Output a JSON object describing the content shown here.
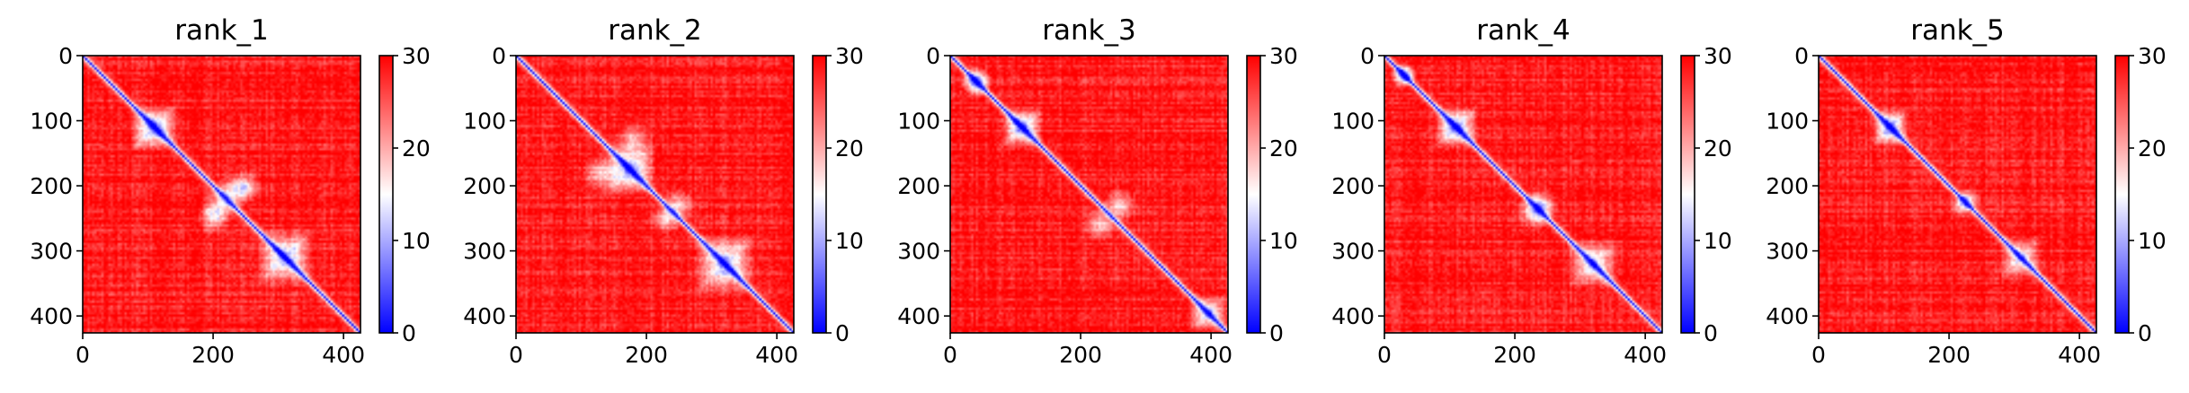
{
  "chart_data": [
    {
      "type": "heatmap",
      "title": "rank_1",
      "xlabel": "",
      "ylabel": "",
      "xlim": [
        0,
        426
      ],
      "ylim": [
        426,
        0
      ],
      "xticks": [
        0,
        200,
        400
      ],
      "yticks": [
        0,
        100,
        200,
        300,
        400
      ],
      "colorbar": {
        "range": [
          0,
          30
        ],
        "ticks": [
          0,
          10,
          20,
          30
        ],
        "colors": [
          "#0000ff",
          "#ffffff",
          "#ff0000"
        ]
      },
      "domains": [
        {
          "center": 110,
          "size": 36,
          "strength": 1.0
        },
        {
          "center": 310,
          "size": 44,
          "strength": 0.9
        }
      ],
      "off_diagonal_blobs": [
        {
          "x": 210,
          "y": 230,
          "size": 30
        },
        {
          "x": 250,
          "y": 200,
          "size": 26
        }
      ]
    },
    {
      "type": "heatmap",
      "title": "rank_2",
      "xlabel": "",
      "ylabel": "",
      "xlim": [
        0,
        426
      ],
      "ylim": [
        426,
        0
      ],
      "xticks": [
        0,
        200,
        400
      ],
      "yticks": [
        0,
        100,
        200,
        300,
        400
      ],
      "colorbar": {
        "range": [
          0,
          30
        ],
        "ticks": [
          0,
          10,
          20,
          30
        ],
        "colors": [
          "#0000ff",
          "#ffffff",
          "#ff0000"
        ]
      },
      "domains": [
        {
          "center": 175,
          "size": 40,
          "strength": 1.0
        },
        {
          "center": 320,
          "size": 46,
          "strength": 0.9
        }
      ],
      "off_diagonal_blobs": [
        {
          "x": 130,
          "y": 180,
          "size": 30
        },
        {
          "x": 230,
          "y": 250,
          "size": 26
        }
      ]
    },
    {
      "type": "heatmap",
      "title": "rank_3",
      "xlabel": "",
      "ylabel": "",
      "xlim": [
        0,
        426
      ],
      "ylim": [
        426,
        0
      ],
      "xticks": [
        0,
        200,
        400
      ],
      "yticks": [
        0,
        100,
        200,
        300,
        400
      ],
      "colorbar": {
        "range": [
          0,
          30
        ],
        "ticks": [
          0,
          10,
          20,
          30
        ],
        "colors": [
          "#0000ff",
          "#ffffff",
          "#ff0000"
        ]
      },
      "domains": [
        {
          "center": 110,
          "size": 32,
          "strength": 1.0
        },
        {
          "center": 395,
          "size": 30,
          "strength": 0.8
        }
      ],
      "off_diagonal_blobs": [
        {
          "x": 40,
          "y": 40,
          "size": 24
        },
        {
          "x": 260,
          "y": 230,
          "size": 28
        }
      ]
    },
    {
      "type": "heatmap",
      "title": "rank_4",
      "xlabel": "",
      "ylabel": "",
      "xlim": [
        0,
        426
      ],
      "ylim": [
        426,
        0
      ],
      "xticks": [
        0,
        200,
        400
      ],
      "yticks": [
        0,
        100,
        200,
        300,
        400
      ],
      "colorbar": {
        "range": [
          0,
          30
        ],
        "ticks": [
          0,
          10,
          20,
          30
        ],
        "colors": [
          "#0000ff",
          "#ffffff",
          "#ff0000"
        ]
      },
      "domains": [
        {
          "center": 110,
          "size": 34,
          "strength": 1.0
        },
        {
          "center": 320,
          "size": 40,
          "strength": 0.8
        }
      ],
      "off_diagonal_blobs": [
        {
          "x": 240,
          "y": 230,
          "size": 30
        },
        {
          "x": 30,
          "y": 30,
          "size": 20
        }
      ]
    },
    {
      "type": "heatmap",
      "title": "rank_5",
      "xlabel": "",
      "ylabel": "",
      "xlim": [
        0,
        426
      ],
      "ylim": [
        426,
        0
      ],
      "xticks": [
        0,
        200,
        400
      ],
      "yticks": [
        0,
        100,
        200,
        300,
        400
      ],
      "colorbar": {
        "range": [
          0,
          30
        ],
        "ticks": [
          0,
          10,
          20,
          30
        ],
        "colors": [
          "#0000ff",
          "#ffffff",
          "#ff0000"
        ]
      },
      "domains": [
        {
          "center": 110,
          "size": 30,
          "strength": 1.0
        },
        {
          "center": 310,
          "size": 34,
          "strength": 0.7
        }
      ],
      "off_diagonal_blobs": [
        {
          "x": 220,
          "y": 230,
          "size": 20
        }
      ]
    }
  ]
}
